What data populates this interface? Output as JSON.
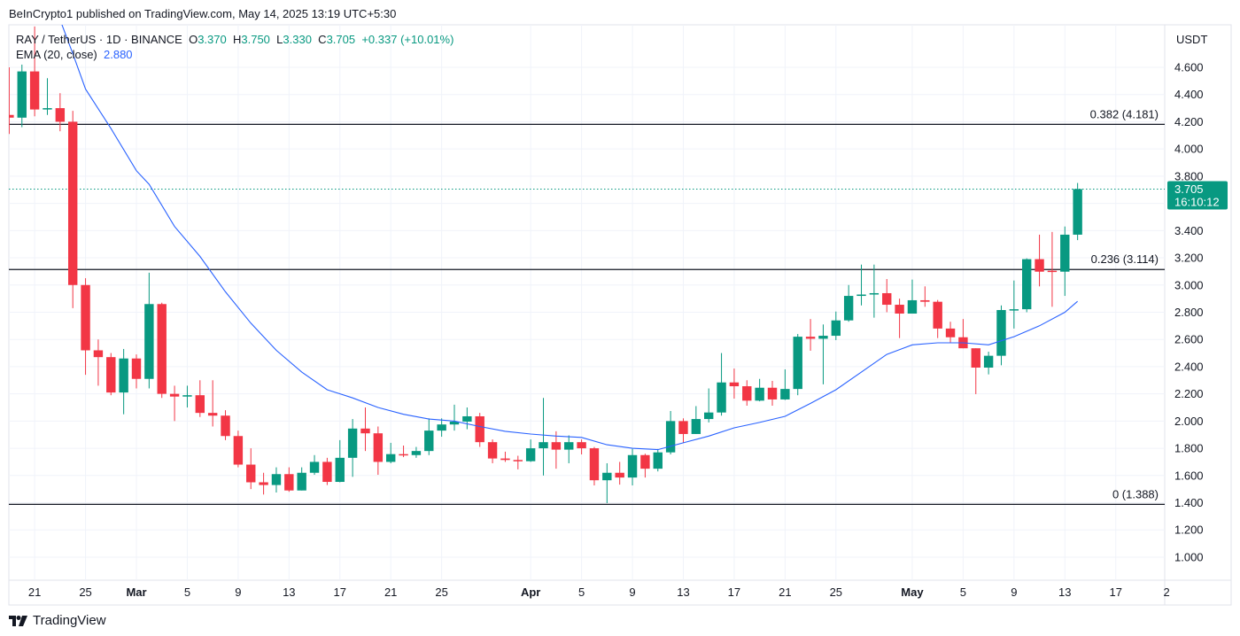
{
  "publish_line": "BeInCrypto1 published on TradingView.com, May 14, 2025 13:19 UTC+5:30",
  "legend": {
    "symbol": "RAY / TetherUS · 1D · BINANCE",
    "open_label": "O",
    "open": "3.370",
    "high_label": "H",
    "high": "3.750",
    "low_label": "L",
    "low": "3.330",
    "close_label": "C",
    "close": "3.705",
    "change": "+0.337 (+10.01%)",
    "ema_label": "EMA (20, close)",
    "ema_value": "2.880"
  },
  "currency": "USDT",
  "brand": "TradingView",
  "colors": {
    "up": "#089981",
    "down": "#f23645",
    "ema": "#2962ff",
    "level": "#131722",
    "grid": "#f0f3fa"
  },
  "chart_data": {
    "type": "candlestick",
    "ylim": [
      0.88,
      4.9
    ],
    "y_ticks": [
      "1.000",
      "1.200",
      "1.400",
      "1.600",
      "1.800",
      "2.000",
      "2.200",
      "2.400",
      "2.600",
      "2.800",
      "3.000",
      "3.200",
      "3.400",
      "3.600",
      "3.800",
      "4.000",
      "4.200",
      "4.400",
      "4.600"
    ],
    "x_ticks": [
      {
        "label": "21",
        "date": "2025-02-21",
        "bold": false
      },
      {
        "label": "25",
        "date": "2025-02-25",
        "bold": false
      },
      {
        "label": "Mar",
        "date": "2025-03-01",
        "bold": true
      },
      {
        "label": "5",
        "date": "2025-03-05",
        "bold": false
      },
      {
        "label": "9",
        "date": "2025-03-09",
        "bold": false
      },
      {
        "label": "13",
        "date": "2025-03-13",
        "bold": false
      },
      {
        "label": "17",
        "date": "2025-03-17",
        "bold": false
      },
      {
        "label": "21",
        "date": "2025-03-21",
        "bold": false
      },
      {
        "label": "25",
        "date": "2025-03-25",
        "bold": false
      },
      {
        "label": "Apr",
        "date": "2025-04-01",
        "bold": true
      },
      {
        "label": "5",
        "date": "2025-04-05",
        "bold": false
      },
      {
        "label": "9",
        "date": "2025-04-09",
        "bold": false
      },
      {
        "label": "13",
        "date": "2025-04-13",
        "bold": false
      },
      {
        "label": "17",
        "date": "2025-04-17",
        "bold": false
      },
      {
        "label": "21",
        "date": "2025-04-21",
        "bold": false
      },
      {
        "label": "25",
        "date": "2025-04-25",
        "bold": false
      },
      {
        "label": "May",
        "date": "2025-05-01",
        "bold": true
      },
      {
        "label": "5",
        "date": "2025-05-05",
        "bold": false
      },
      {
        "label": "9",
        "date": "2025-05-09",
        "bold": false
      },
      {
        "label": "13",
        "date": "2025-05-13",
        "bold": false
      },
      {
        "label": "17",
        "date": "2025-05-17",
        "bold": false
      },
      {
        "label": "2",
        "date": "2025-05-21",
        "bold": false
      }
    ],
    "candles_columns": [
      "date",
      "open",
      "high",
      "low",
      "close"
    ],
    "candles": [
      [
        "2025-02-19",
        4.25,
        4.6,
        4.11,
        4.23
      ],
      [
        "2025-02-20",
        4.23,
        4.62,
        4.16,
        4.57
      ],
      [
        "2025-02-21",
        4.57,
        4.9,
        4.24,
        4.29
      ],
      [
        "2025-02-22",
        4.29,
        4.52,
        4.25,
        4.3
      ],
      [
        "2025-02-23",
        4.3,
        4.41,
        4.13,
        4.2
      ],
      [
        "2025-02-24",
        4.2,
        4.28,
        2.83,
        3.0
      ],
      [
        "2025-02-25",
        3.0,
        3.05,
        2.34,
        2.52
      ],
      [
        "2025-02-26",
        2.52,
        2.6,
        2.26,
        2.47
      ],
      [
        "2025-02-27",
        2.47,
        2.5,
        2.19,
        2.21
      ],
      [
        "2025-02-28",
        2.21,
        2.53,
        2.05,
        2.46
      ],
      [
        "2025-03-01",
        2.46,
        2.49,
        2.24,
        2.31
      ],
      [
        "2025-03-02",
        2.31,
        3.09,
        2.24,
        2.86
      ],
      [
        "2025-03-03",
        2.86,
        2.87,
        2.17,
        2.2
      ],
      [
        "2025-03-04",
        2.2,
        2.26,
        2.0,
        2.18
      ],
      [
        "2025-03-05",
        2.18,
        2.26,
        2.1,
        2.19
      ],
      [
        "2025-03-06",
        2.19,
        2.3,
        2.03,
        2.06
      ],
      [
        "2025-03-07",
        2.06,
        2.3,
        1.96,
        2.04
      ],
      [
        "2025-03-08",
        2.04,
        2.08,
        1.86,
        1.89
      ],
      [
        "2025-03-09",
        1.89,
        1.93,
        1.66,
        1.68
      ],
      [
        "2025-03-10",
        1.68,
        1.8,
        1.5,
        1.55
      ],
      [
        "2025-03-11",
        1.55,
        1.62,
        1.46,
        1.53
      ],
      [
        "2025-03-12",
        1.53,
        1.66,
        1.475,
        1.61
      ],
      [
        "2025-03-13",
        1.61,
        1.66,
        1.48,
        1.49
      ],
      [
        "2025-03-14",
        1.49,
        1.66,
        1.49,
        1.62
      ],
      [
        "2025-03-15",
        1.62,
        1.75,
        1.605,
        1.7
      ],
      [
        "2025-03-16",
        1.7,
        1.73,
        1.53,
        1.553
      ],
      [
        "2025-03-17",
        1.553,
        1.86,
        1.55,
        1.73
      ],
      [
        "2025-03-18",
        1.73,
        2.015,
        1.59,
        1.945
      ],
      [
        "2025-03-19",
        1.945,
        2.1,
        1.78,
        1.91
      ],
      [
        "2025-03-20",
        1.91,
        1.96,
        1.605,
        1.7
      ],
      [
        "2025-03-21",
        1.7,
        1.84,
        1.69,
        1.757
      ],
      [
        "2025-03-22",
        1.757,
        1.82,
        1.735,
        1.75
      ],
      [
        "2025-03-23",
        1.75,
        1.81,
        1.73,
        1.78
      ],
      [
        "2025-03-24",
        1.78,
        2.02,
        1.75,
        1.93
      ],
      [
        "2025-03-25",
        1.93,
        2.02,
        1.885,
        1.975
      ],
      [
        "2025-03-26",
        1.975,
        2.12,
        1.93,
        1.996
      ],
      [
        "2025-03-27",
        1.996,
        2.1,
        1.94,
        2.035
      ],
      [
        "2025-03-28",
        2.035,
        2.06,
        1.81,
        1.845
      ],
      [
        "2025-03-29",
        1.845,
        1.865,
        1.69,
        1.725
      ],
      [
        "2025-03-30",
        1.725,
        1.775,
        1.7,
        1.714
      ],
      [
        "2025-03-31",
        1.714,
        1.745,
        1.645,
        1.705
      ],
      [
        "2025-04-01",
        1.705,
        1.865,
        1.7,
        1.8
      ],
      [
        "2025-04-02",
        1.8,
        2.17,
        1.6,
        1.845
      ],
      [
        "2025-04-03",
        1.845,
        1.925,
        1.65,
        1.79
      ],
      [
        "2025-04-04",
        1.79,
        1.895,
        1.69,
        1.845
      ],
      [
        "2025-04-05",
        1.845,
        1.865,
        1.755,
        1.8
      ],
      [
        "2025-04-06",
        1.8,
        1.81,
        1.527,
        1.565
      ],
      [
        "2025-04-07",
        1.565,
        1.69,
        1.397,
        1.62
      ],
      [
        "2025-04-08",
        1.62,
        1.7,
        1.533,
        1.585
      ],
      [
        "2025-04-09",
        1.585,
        1.796,
        1.527,
        1.75
      ],
      [
        "2025-04-10",
        1.75,
        1.76,
        1.585,
        1.65
      ],
      [
        "2025-04-11",
        1.65,
        1.795,
        1.63,
        1.77
      ],
      [
        "2025-04-12",
        1.77,
        2.074,
        1.755,
        2.0
      ],
      [
        "2025-04-13",
        2.0,
        2.02,
        1.84,
        1.905
      ],
      [
        "2025-04-14",
        1.905,
        2.11,
        1.905,
        2.015
      ],
      [
        "2025-04-15",
        2.015,
        2.24,
        1.99,
        2.063
      ],
      [
        "2025-04-16",
        2.063,
        2.5,
        2.04,
        2.284
      ],
      [
        "2025-04-17",
        2.284,
        2.386,
        2.165,
        2.256
      ],
      [
        "2025-04-18",
        2.256,
        2.3,
        2.113,
        2.15
      ],
      [
        "2025-04-19",
        2.15,
        2.31,
        2.145,
        2.245
      ],
      [
        "2025-04-20",
        2.245,
        2.295,
        2.113,
        2.159
      ],
      [
        "2025-04-21",
        2.159,
        2.38,
        2.155,
        2.236
      ],
      [
        "2025-04-22",
        2.236,
        2.64,
        2.19,
        2.62
      ],
      [
        "2025-04-23",
        2.62,
        2.75,
        2.517,
        2.605
      ],
      [
        "2025-04-24",
        2.605,
        2.71,
        2.27,
        2.627
      ],
      [
        "2025-04-25",
        2.627,
        2.805,
        2.595,
        2.74
      ],
      [
        "2025-04-26",
        2.74,
        3.0,
        2.73,
        2.92
      ],
      [
        "2025-04-27",
        2.92,
        3.15,
        2.85,
        2.93
      ],
      [
        "2025-04-28",
        2.93,
        3.15,
        2.76,
        2.94
      ],
      [
        "2025-04-29",
        2.94,
        3.044,
        2.8,
        2.855
      ],
      [
        "2025-04-30",
        2.855,
        2.9,
        2.61,
        2.79
      ],
      [
        "2025-05-01",
        2.79,
        3.04,
        2.79,
        2.888
      ],
      [
        "2025-05-02",
        2.888,
        2.99,
        2.84,
        2.877
      ],
      [
        "2025-05-03",
        2.877,
        2.89,
        2.61,
        2.68
      ],
      [
        "2025-05-04",
        2.68,
        2.73,
        2.573,
        2.616
      ],
      [
        "2025-05-05",
        2.616,
        2.75,
        2.535,
        2.535
      ],
      [
        "2025-05-06",
        2.535,
        2.535,
        2.198,
        2.393
      ],
      [
        "2025-05-07",
        2.393,
        2.51,
        2.343,
        2.48
      ],
      [
        "2025-05-08",
        2.48,
        2.85,
        2.41,
        2.816
      ],
      [
        "2025-05-09",
        2.816,
        3.033,
        2.68,
        2.822
      ],
      [
        "2025-05-10",
        2.822,
        3.196,
        2.8,
        3.19
      ],
      [
        "2025-05-11",
        3.19,
        3.37,
        2.99,
        3.098
      ],
      [
        "2025-05-12",
        3.105,
        3.39,
        2.84,
        3.098
      ],
      [
        "2025-05-13",
        3.098,
        3.43,
        2.92,
        3.37
      ],
      [
        "2025-05-14",
        3.37,
        3.75,
        3.33,
        3.705
      ]
    ],
    "ema": {
      "name": "EMA (20, close)",
      "points": [
        [
          "2025-02-23",
          4.95
        ],
        [
          "2025-02-24",
          4.7
        ],
        [
          "2025-02-25",
          4.44
        ],
        [
          "2025-02-27",
          4.15
        ],
        [
          "2025-03-01",
          3.84
        ],
        [
          "2025-03-02",
          3.74
        ],
        [
          "2025-03-04",
          3.43
        ],
        [
          "2025-03-06",
          3.21
        ],
        [
          "2025-03-08",
          2.95
        ],
        [
          "2025-03-10",
          2.72
        ],
        [
          "2025-03-12",
          2.52
        ],
        [
          "2025-03-14",
          2.36
        ],
        [
          "2025-03-16",
          2.23
        ],
        [
          "2025-03-18",
          2.17
        ],
        [
          "2025-03-20",
          2.1
        ],
        [
          "2025-03-22",
          2.05
        ],
        [
          "2025-03-24",
          2.015
        ],
        [
          "2025-03-26",
          2.0
        ],
        [
          "2025-03-28",
          1.96
        ],
        [
          "2025-03-30",
          1.925
        ],
        [
          "2025-04-01",
          1.905
        ],
        [
          "2025-04-03",
          1.89
        ],
        [
          "2025-04-05",
          1.88
        ],
        [
          "2025-04-07",
          1.826
        ],
        [
          "2025-04-09",
          1.8
        ],
        [
          "2025-04-11",
          1.79
        ],
        [
          "2025-04-13",
          1.84
        ],
        [
          "2025-04-15",
          1.89
        ],
        [
          "2025-04-17",
          1.95
        ],
        [
          "2025-04-19",
          1.99
        ],
        [
          "2025-04-21",
          2.035
        ],
        [
          "2025-04-23",
          2.13
        ],
        [
          "2025-04-25",
          2.23
        ],
        [
          "2025-04-27",
          2.36
        ],
        [
          "2025-04-29",
          2.49
        ],
        [
          "2025-05-01",
          2.56
        ],
        [
          "2025-05-03",
          2.575
        ],
        [
          "2025-05-05",
          2.575
        ],
        [
          "2025-05-07",
          2.56
        ],
        [
          "2025-05-09",
          2.62
        ],
        [
          "2025-05-11",
          2.7
        ],
        [
          "2025-05-13",
          2.8
        ],
        [
          "2025-05-14",
          2.88
        ]
      ]
    },
    "levels": [
      {
        "label": "0.382 (4.181)",
        "value": 4.181
      },
      {
        "label": "0.236 (3.114)",
        "value": 3.114
      },
      {
        "label": "0 (1.388)",
        "value": 1.388
      }
    ],
    "last_price": {
      "value": 3.705,
      "label": "3.705",
      "countdown": "16:10:12"
    },
    "grid": true
  }
}
